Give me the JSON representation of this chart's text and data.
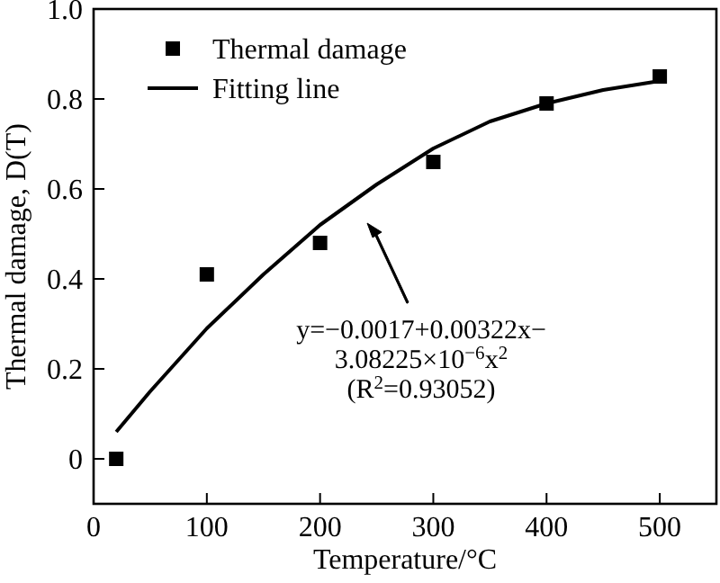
{
  "chart_data": {
    "type": "scatter",
    "xlabel": "Temperature/°C",
    "ylabel": "Thermal damage, D(T)",
    "xlim": [
      0,
      550
    ],
    "xticks": [
      0,
      100,
      200,
      300,
      400,
      500
    ],
    "ylim": [
      -0.1,
      1.0
    ],
    "yticks": [
      0,
      0.2,
      0.4,
      0.6,
      0.8,
      {
        "value": 1,
        "label": "1.0"
      }
    ],
    "grid": false,
    "legend": "top left",
    "marker": "square",
    "series": [
      {
        "name": "Thermal damage",
        "color": "#000000",
        "x": [
          20,
          100,
          200,
          300,
          400,
          500
        ],
        "values": [
          0,
          0.41,
          0.48,
          0.66,
          0.79,
          0.85
        ]
      },
      {
        "name": "Fitting line",
        "type": "line",
        "color": "#000000",
        "marker": "none",
        "line_style": "solid",
        "x": [
          20,
          50,
          100,
          150,
          200,
          250,
          300,
          350,
          400,
          450,
          500
        ],
        "values": [
          0.06,
          0.15,
          0.29,
          0.41,
          0.52,
          0.61,
          0.69,
          0.75,
          0.79,
          0.82,
          0.84
        ]
      }
    ],
    "annotations": [
      "y=−0.0017+0.00322x−",
      "3.08225×10$^{−6}$x$^{2}$",
      "(R$^{2}$=0.93052)"
    ]
  }
}
